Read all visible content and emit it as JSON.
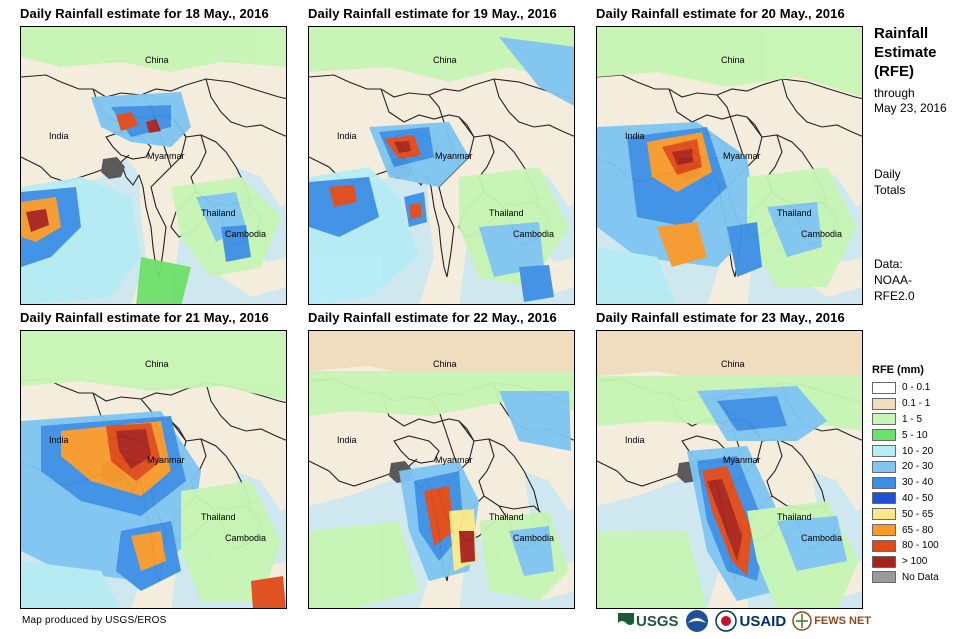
{
  "panels": [
    {
      "title": "Daily Rainfall estimate for 18 May., 2016"
    },
    {
      "title": "Daily Rainfall estimate for 19 May., 2016"
    },
    {
      "title": "Daily Rainfall estimate for 20 May., 2016"
    },
    {
      "title": "Daily Rainfall estimate for 21 May., 2016"
    },
    {
      "title": "Daily Rainfall estimate for 22 May., 2016"
    },
    {
      "title": "Daily Rainfall estimate for 23 May., 2016"
    }
  ],
  "map_labels": {
    "china": "China",
    "india": "India",
    "myanmar": "Myanmar",
    "thailand": "Thailand",
    "cambodia": "Cambodia"
  },
  "sidebar": {
    "title_line1": "Rainfall",
    "title_line2": "Estimate",
    "title_line3": "(RFE)",
    "through": "through",
    "date": "May 23, 2016",
    "daily": "Daily",
    "totals": "Totals",
    "data_label": "Data:",
    "data_source1": "NOAA-",
    "data_source2": "RFE2.0"
  },
  "legend": {
    "title": "RFE (mm)",
    "items": [
      {
        "label": "0 - 0.1",
        "color": "#ffffff"
      },
      {
        "label": "0.1 - 1",
        "color": "#f0dcbe"
      },
      {
        "label": "1 - 5",
        "color": "#c6f5b4"
      },
      {
        "label": "5 - 10",
        "color": "#6de06a"
      },
      {
        "label": "10 - 20",
        "color": "#b6ecf5"
      },
      {
        "label": "20 - 30",
        "color": "#7ec5f2"
      },
      {
        "label": "30 - 40",
        "color": "#3c8fe6"
      },
      {
        "label": "40 - 50",
        "color": "#1d4fd8"
      },
      {
        "label": "50 - 65",
        "color": "#fbe889"
      },
      {
        "label": "65 - 80",
        "color": "#f79a2a"
      },
      {
        "label": "80 - 100",
        "color": "#e04a1a"
      },
      {
        "label": "> 100",
        "color": "#a8231c"
      },
      {
        "label": "No Data",
        "color": "#9a9a9a"
      }
    ]
  },
  "credit": "Map produced by USGS/EROS",
  "logos": {
    "usgs": "USGS",
    "usaid": "USAID",
    "fewsnet": "FEWS NET"
  }
}
